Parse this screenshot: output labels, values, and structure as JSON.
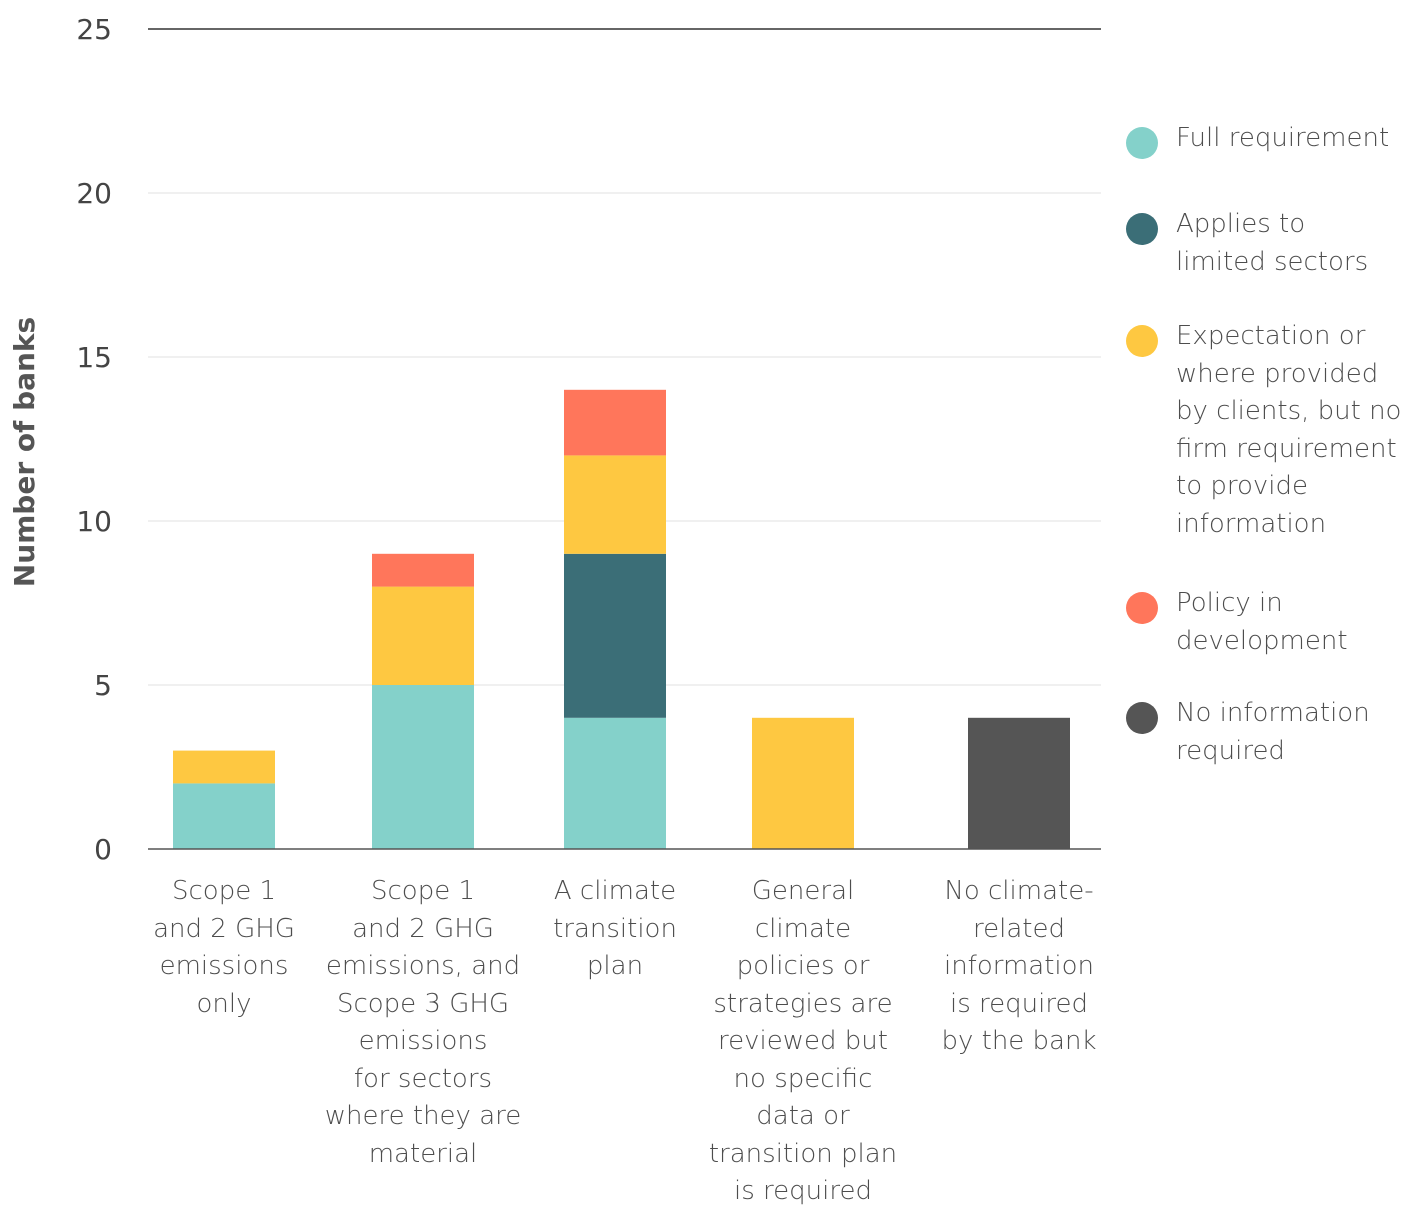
{
  "chart_data": {
    "type": "bar",
    "stacked": true,
    "ylabel": "Number of banks",
    "xlabel": "",
    "ylim": [
      0,
      25
    ],
    "yticks": [
      0,
      5,
      10,
      15,
      20,
      25
    ],
    "grid": true,
    "legend_position": "right",
    "categories": [
      "Scope 1\nand 2 GHG\nemissions\nonly",
      "Scope 1\nand 2 GHG\nemissions, and\nScope 3 GHG\nemissions\nfor sectors\nwhere they are\nmaterial",
      "A climate\ntransition\nplan",
      "General\nclimate\npolicies or\nstrategies are\nreviewed but\nno specific\ndata or\ntransition plan\nis required",
      "No climate-\nrelated\ninformation\nis required\nby the bank"
    ],
    "series": [
      {
        "name": "Full requirement",
        "color": "#84d1ca",
        "values": [
          2,
          5,
          4,
          0,
          0
        ]
      },
      {
        "name": "Applies to\nlimited sectors",
        "color": "#3b6e77",
        "values": [
          0,
          0,
          5,
          0,
          0
        ]
      },
      {
        "name": "Expectation or\nwhere provided\nby clients, but no\nfirm requirement\nto provide\ninformation",
        "color": "#fec841",
        "values": [
          1,
          3,
          3,
          4,
          0
        ]
      },
      {
        "name": "Policy in\ndevelopment",
        "color": "#ff765b",
        "values": [
          0,
          1,
          2,
          0,
          0
        ]
      },
      {
        "name": "No information\nrequired",
        "color": "#555555",
        "values": [
          0,
          0,
          0,
          0,
          4
        ]
      }
    ]
  }
}
